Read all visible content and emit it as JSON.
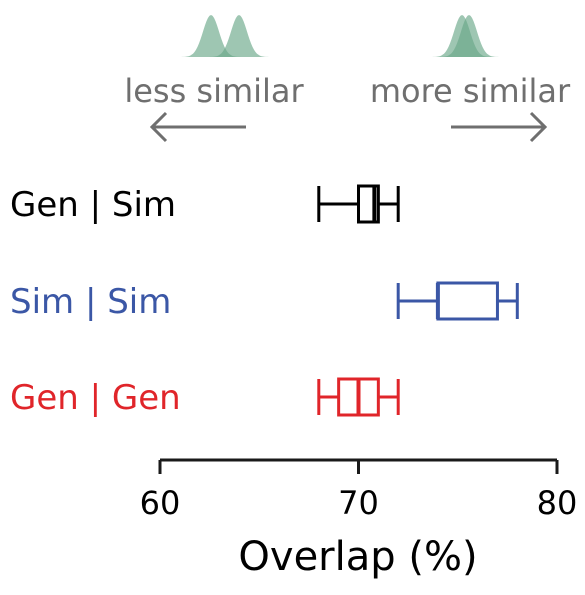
{
  "chart_data": {
    "type": "boxplot",
    "orientation": "horizontal",
    "xlabel": "Overlap (%)",
    "xlim": [
      60,
      80
    ],
    "xticks": [
      60,
      70,
      80
    ],
    "xtick_labels": [
      "60",
      "70",
      "80"
    ],
    "grid": false,
    "annotations": {
      "left_text": "less similar",
      "right_text": "more similar",
      "left_arrow_direction": "left",
      "right_arrow_direction": "right",
      "icon_color": "#6aa889"
    },
    "series": [
      {
        "name": "Gen | Sim",
        "color": "#000000",
        "whisker_low": 68.0,
        "q1": 70.0,
        "median": 70.8,
        "q3": 71.0,
        "whisker_high": 72.0
      },
      {
        "name": "Sim | Sim",
        "color": "#3b57a6",
        "whisker_low": 72.0,
        "q1": 74.0,
        "median": 74.0,
        "q3": 77.0,
        "whisker_high": 78.0
      },
      {
        "name": "Gen | Gen",
        "color": "#e0252a",
        "whisker_low": 68.0,
        "q1": 69.0,
        "median": 70.0,
        "q3": 71.0,
        "whisker_high": 72.0
      }
    ]
  }
}
